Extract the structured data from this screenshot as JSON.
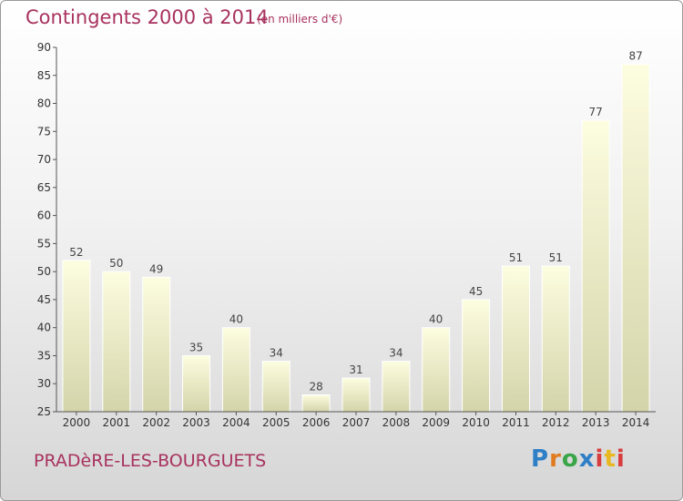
{
  "header": {
    "title": "Contingents 2000 à 2014",
    "subtitle": "(en milliers d'€)"
  },
  "footer": {
    "place": "PRADèRE-LES-BOURGUETS",
    "logo_parts": [
      "P",
      "r",
      "o",
      "x",
      "i",
      "t",
      "i"
    ]
  },
  "colors": {
    "title": "#a8325e",
    "bar_top": "#fdfde0",
    "bar_bottom": "#d4d4aa",
    "axis": "#555555"
  },
  "chart_data": {
    "type": "bar",
    "title": "Contingents 2000 à 2014",
    "subtitle": "(en milliers d'€)",
    "categories": [
      "2000",
      "2001",
      "2002",
      "2003",
      "2004",
      "2005",
      "2006",
      "2007",
      "2008",
      "2009",
      "2010",
      "2011",
      "2012",
      "2013",
      "2014"
    ],
    "values": [
      52,
      50,
      49,
      35,
      40,
      34,
      28,
      31,
      34,
      40,
      45,
      51,
      51,
      77,
      87
    ],
    "ylim": [
      25,
      90
    ],
    "yticks": [
      25,
      30,
      35,
      40,
      45,
      50,
      55,
      60,
      65,
      70,
      75,
      80,
      85,
      90
    ],
    "grid": false,
    "legend": "none"
  }
}
